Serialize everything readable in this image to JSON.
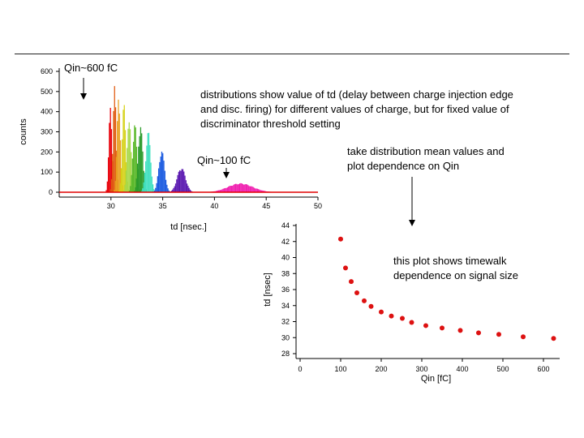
{
  "annotations": {
    "qin_600": "Qin~600 fC",
    "qin_100": "Qin~100 fC",
    "distributions_note": "distributions show value of td (delay between charge injection edge\nand disc. firing) for different values of charge, but for fixed value of\ndiscriminator threshold setting",
    "mean_note": "take distribution mean values and\nplot dependence on Qin",
    "timewalk_note": "this plot shows timewalk\ndependence on signal size"
  },
  "chart_data": [
    {
      "type": "bar",
      "title": "",
      "xlabel": "td [nsec.]",
      "ylabel": "counts",
      "xlim": [
        25,
        50
      ],
      "ylim": [
        0,
        600
      ],
      "xticks": [
        30,
        35,
        40,
        45,
        50
      ],
      "yticks": [
        0,
        100,
        200,
        300,
        400,
        500,
        600
      ],
      "baseline_color": "#e00000",
      "series": [
        {
          "center": 29.95,
          "peak": 430,
          "width": 0.15,
          "color": "#e8000a"
        },
        {
          "center": 30.35,
          "peak": 530,
          "width": 0.15,
          "color": "#e05a10"
        },
        {
          "center": 30.75,
          "peak": 495,
          "width": 0.16,
          "color": "#e8a020"
        },
        {
          "center": 31.25,
          "peak": 445,
          "width": 0.17,
          "color": "#d6d21a"
        },
        {
          "center": 31.75,
          "peak": 395,
          "width": 0.18,
          "color": "#a8d84a"
        },
        {
          "center": 32.3,
          "peak": 355,
          "width": 0.19,
          "color": "#5ab82a"
        },
        {
          "center": 32.85,
          "peak": 350,
          "width": 0.21,
          "color": "#2a9a2a"
        },
        {
          "center": 33.6,
          "peak": 305,
          "width": 0.23,
          "color": "#40e0c0"
        },
        {
          "center": 34.9,
          "peak": 210,
          "width": 0.28,
          "color": "#1a5ae0"
        },
        {
          "center": 36.8,
          "peak": 125,
          "width": 0.4,
          "color": "#5a18b0"
        },
        {
          "center": 42.5,
          "peak": 45,
          "width": 1.2,
          "color": "#f020b0"
        }
      ]
    },
    {
      "type": "scatter",
      "title": "",
      "xlabel": "Qin [fC]",
      "ylabel": "td [nsec]",
      "xlim": [
        -10,
        640
      ],
      "ylim": [
        28,
        44
      ],
      "xticks": [
        0,
        100,
        200,
        300,
        400,
        500,
        600
      ],
      "yticks": [
        28,
        30,
        32,
        34,
        36,
        38,
        40,
        42,
        44
      ],
      "color": "#dd1111",
      "points": [
        {
          "x": 100,
          "y": 42.3
        },
        {
          "x": 112,
          "y": 38.7
        },
        {
          "x": 126,
          "y": 37.0
        },
        {
          "x": 140,
          "y": 35.6
        },
        {
          "x": 158,
          "y": 34.6
        },
        {
          "x": 175,
          "y": 33.9
        },
        {
          "x": 200,
          "y": 33.2
        },
        {
          "x": 225,
          "y": 32.7
        },
        {
          "x": 252,
          "y": 32.4
        },
        {
          "x": 275,
          "y": 31.9
        },
        {
          "x": 310,
          "y": 31.5
        },
        {
          "x": 350,
          "y": 31.2
        },
        {
          "x": 395,
          "y": 30.9
        },
        {
          "x": 440,
          "y": 30.6
        },
        {
          "x": 490,
          "y": 30.4
        },
        {
          "x": 550,
          "y": 30.1
        },
        {
          "x": 625,
          "y": 29.9
        }
      ]
    }
  ]
}
